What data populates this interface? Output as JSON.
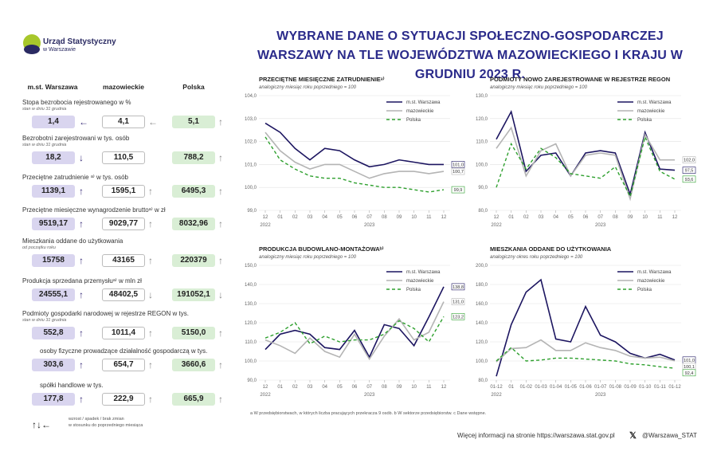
{
  "logo": {
    "name": "Urząd Statystyczny",
    "sub": "w Warszawie"
  },
  "title": "WYBRANE DANE O SYTUACJI SPOŁECZNO-GOSPODARCZEJ WARSZAWY NA TLE WOJEWÓDZTWA MAZOWIECKIEGO I KRAJU W GRUDNIU 2023 R.",
  "columns": [
    "m.st. Warszawa",
    "mazowieckie",
    "Polska"
  ],
  "indicators": [
    {
      "label": "Stopa bezrobocia rejestrowanego w %",
      "note": "stan w dniu 31 grudnia",
      "w": "1,4",
      "m": "4,1",
      "p": "5,1",
      "aw": "←",
      "am": "←",
      "ap": "↑"
    },
    {
      "label": "Bezrobotni zarejestrowani w tys. osób",
      "note": "stan w dniu 31 grudnia",
      "w": "18,2",
      "m": "110,5",
      "p": "788,2",
      "aw": "↓",
      "am": "",
      "ap": "↑"
    },
    {
      "label": "Przeciętne zatrudnienie ᵃ⁾ w tys. osób",
      "note": "",
      "w": "1139,1",
      "m": "1595,1",
      "p": "6495,3",
      "aw": "↑",
      "am": "↑",
      "ap": "↑"
    },
    {
      "label": "Przeciętne miesięczne wynagrodzenie bruttoᵃ⁾ w zł",
      "note": "",
      "w": "9519,17",
      "m": "9029,77",
      "p": "8032,96",
      "aw": "↑",
      "am": "↑",
      "ap": "↑"
    },
    {
      "label": "Mieszkania oddane do użytkowania",
      "note": "od początku roku",
      "w": "15758",
      "m": "43165",
      "p": "220379",
      "aw": "↑",
      "am": "↑",
      "ap": "↑"
    },
    {
      "label": "Produkcja sprzedana przemysłuᵃ⁾ w mln zł",
      "note": "",
      "w": "24555,1",
      "m": "48402,5",
      "p": "191052,1",
      "aw": "↑",
      "am": "↓",
      "ap": "↓"
    },
    {
      "label": "Podmioty gospodarki narodowej w rejestrze REGON w tys.",
      "note": "stan w dniu 31 grudnia",
      "w": "552,8",
      "m": "1011,4",
      "p": "5150,0",
      "aw": "↑",
      "am": "↑",
      "ap": "↑"
    },
    {
      "label": "osoby fizyczne prowadzące działalność gospodarczą w tys.",
      "note": "",
      "w": "303,6",
      "m": "654,7",
      "p": "3660,6",
      "aw": "↑",
      "am": "↑",
      "ap": "↑"
    },
    {
      "label": "spółki handlowe w tys.",
      "note": "",
      "w": "177,8",
      "m": "222,9",
      "p": "665,9",
      "aw": "↑",
      "am": "↑",
      "ap": "↑"
    }
  ],
  "arrow_legend": {
    "symbols": "↑↓←",
    "text1": "wzrost / spadek / brak zmian",
    "text2": "w stosunku do poprzedniego miesiąca"
  },
  "footnote": "a W przedsiębiorstwach, w których liczba pracujących przekracza 9 osób.  b W sektorze przedsiębiorstw.  c Dane wstępne.",
  "more_info": "Więcej informacji na stronie https://warszawa.stat.gov.pl",
  "handle": "@Warszawa_STAT",
  "colors": {
    "warszawa": "#1c1560",
    "mazowieckie": "#b4b4b4",
    "polska": "#2ea02e",
    "title": "#2a2a8a"
  },
  "chart_data": [
    {
      "type": "line",
      "title": "PRZECIĘTNE MIESIĘCZNE ZATRUDNIENIEᵃ⁾",
      "subtitle": "analogiczny miesiąc roku poprzedniego = 100",
      "categories": [
        "12",
        "01",
        "02",
        "03",
        "04",
        "05",
        "06",
        "07",
        "08",
        "09",
        "10",
        "11",
        "12"
      ],
      "years": [
        "2022",
        "2023"
      ],
      "ylim": [
        99,
        104
      ],
      "yticks": [
        "99,0",
        "100,0",
        "101,0",
        "102,0",
        "103,0",
        "104,0"
      ],
      "series": [
        {
          "name": "m.st. Warszawa",
          "values": [
            102.8,
            102.4,
            101.7,
            101.2,
            101.7,
            101.6,
            101.2,
            100.9,
            101.0,
            101.2,
            101.1,
            101.0,
            101.0
          ]
        },
        {
          "name": "mazowieckie",
          "values": [
            102.4,
            101.6,
            101.1,
            100.8,
            101.0,
            101.0,
            100.7,
            100.4,
            100.6,
            100.7,
            100.7,
            100.6,
            100.7
          ]
        },
        {
          "name": "Polska",
          "values": [
            102.2,
            101.2,
            100.8,
            100.5,
            100.4,
            100.4,
            100.2,
            100.1,
            100.0,
            100.0,
            99.9,
            99.8,
            99.9
          ]
        }
      ],
      "end_labels": [
        "101,0",
        "100,7",
        "99,9"
      ]
    },
    {
      "type": "line",
      "title": "PODMIOTY NOWO ZAREJESTROWANE W REJESTRZE REGON",
      "subtitle": "analogiczny miesiąc roku poprzedniego = 100",
      "categories": [
        "12",
        "01",
        "02",
        "03",
        "04",
        "05",
        "06",
        "07",
        "08",
        "09",
        "10",
        "11",
        "12"
      ],
      "years": [
        "2022",
        "2023"
      ],
      "ylim": [
        80,
        130
      ],
      "yticks": [
        "80,0",
        "90,0",
        "100,0",
        "110,0",
        "120,0",
        "130,0"
      ],
      "series": [
        {
          "name": "m.st. Warszawa",
          "values": [
            111,
            123,
            97,
            104,
            105,
            95,
            105,
            106,
            105,
            87,
            114,
            98,
            97.5
          ]
        },
        {
          "name": "mazowieckie",
          "values": [
            107,
            116,
            95,
            106,
            109,
            95,
            104,
            105,
            104,
            85,
            113,
            102,
            102.0
          ]
        },
        {
          "name": "Polska",
          "values": [
            90,
            109,
            98,
            107,
            103,
            96,
            95,
            94,
            99,
            86,
            112,
            97,
            93.6
          ]
        }
      ],
      "end_labels": [
        "102,0",
        "97,5",
        "93,6"
      ]
    },
    {
      "type": "line",
      "title": "PRODUKCJA BUDOWLANO-MONTAŻOWAᵇ⁾",
      "subtitle": "analogiczny miesiąc roku poprzedniego = 100",
      "categories": [
        "12",
        "01",
        "02",
        "03",
        "04",
        "05",
        "06",
        "07",
        "08",
        "09",
        "10",
        "11",
        "12"
      ],
      "years": [
        "2022",
        "2023"
      ],
      "ylim": [
        90,
        150
      ],
      "yticks": [
        "90,0",
        "100,0",
        "110,0",
        "120,0",
        "130,0",
        "140,0",
        "150,0"
      ],
      "series": [
        {
          "name": "m.st. Warszawa",
          "values": [
            106,
            114,
            116,
            114,
            107,
            106,
            116,
            102,
            119,
            117,
            108,
            123,
            138.8
          ]
        },
        {
          "name": "mazowieckie",
          "values": [
            111,
            108,
            104,
            112,
            105,
            102,
            114,
            101,
            113,
            122,
            111,
            115,
            131.0
          ]
        },
        {
          "name": "Polska",
          "values": [
            112,
            115,
            120,
            109,
            113,
            110,
            111,
            111,
            114,
            121,
            117,
            110,
            123.2
          ]
        }
      ],
      "end_labels": [
        "138,8",
        "131,0",
        "123,2"
      ]
    },
    {
      "type": "line",
      "title": "MIESZKANIA ODDANE DO UŻYTKOWANIA",
      "subtitle": "analogiczny okres roku poprzedniego = 100",
      "categories": [
        "01-12",
        "01",
        "01-02",
        "01-03",
        "01-04",
        "01-05",
        "01-06",
        "01-07",
        "01-08",
        "01-09",
        "01-10",
        "01-11",
        "01-12"
      ],
      "years": [
        "2022",
        "2023"
      ],
      "ylim": [
        80,
        200
      ],
      "yticks": [
        "80,0",
        "100,0",
        "120,0",
        "140,0",
        "160,0",
        "180,0",
        "200,0"
      ],
      "series": [
        {
          "name": "m.st. Warszawa",
          "values": [
            84,
            138,
            172,
            185,
            123,
            120,
            157,
            127,
            120,
            108,
            103,
            107,
            101.0
          ]
        },
        {
          "name": "mazowieckie",
          "values": [
            99,
            113,
            114,
            122,
            111,
            111,
            119,
            114,
            111,
            105,
            103,
            104,
            100.1
          ]
        },
        {
          "name": "Polska",
          "values": [
            100,
            114,
            100,
            101,
            103,
            103,
            102,
            101,
            100,
            97,
            96,
            94,
            92.4
          ]
        }
      ],
      "end_labels": [
        "101,0",
        "100,1",
        "92,4"
      ]
    }
  ]
}
